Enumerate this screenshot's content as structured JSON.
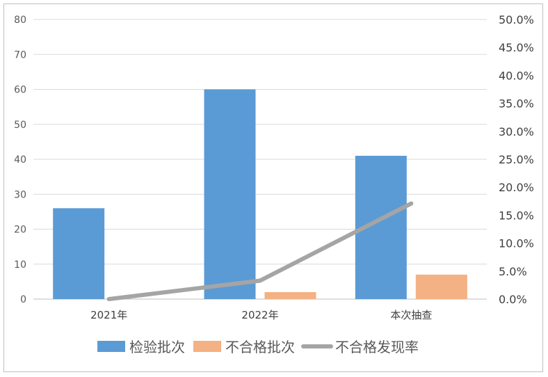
{
  "chart_data": {
    "type": "bar",
    "categories": [
      "2021年",
      "2022年",
      "本次抽查"
    ],
    "series": [
      {
        "name": "检验批次",
        "values": [
          26,
          60,
          41
        ],
        "color": "#5b9bd5",
        "axis": "left",
        "kind": "bar"
      },
      {
        "name": "不合格批次",
        "values": [
          0,
          2,
          7
        ],
        "color": "#f4b183",
        "axis": "left",
        "kind": "bar"
      },
      {
        "name": "不合格发现率",
        "values": [
          0.0,
          3.3,
          17.1
        ],
        "color": "#a5a5a5",
        "axis": "right",
        "kind": "line"
      }
    ],
    "y_left": {
      "min": 0,
      "max": 80,
      "step": 10,
      "ticks": [
        "0",
        "10",
        "20",
        "30",
        "40",
        "50",
        "60",
        "70",
        "80"
      ]
    },
    "y_right": {
      "min": 0,
      "max": 50,
      "step": 5,
      "ticks": [
        "0.0%",
        "5.0%",
        "10.0%",
        "15.0%",
        "20.0%",
        "25.0%",
        "30.0%",
        "35.0%",
        "40.0%",
        "45.0%",
        "50.0%"
      ]
    },
    "grid": true,
    "legend": "bottom",
    "title": "",
    "xlabel": "",
    "ylabel": ""
  }
}
